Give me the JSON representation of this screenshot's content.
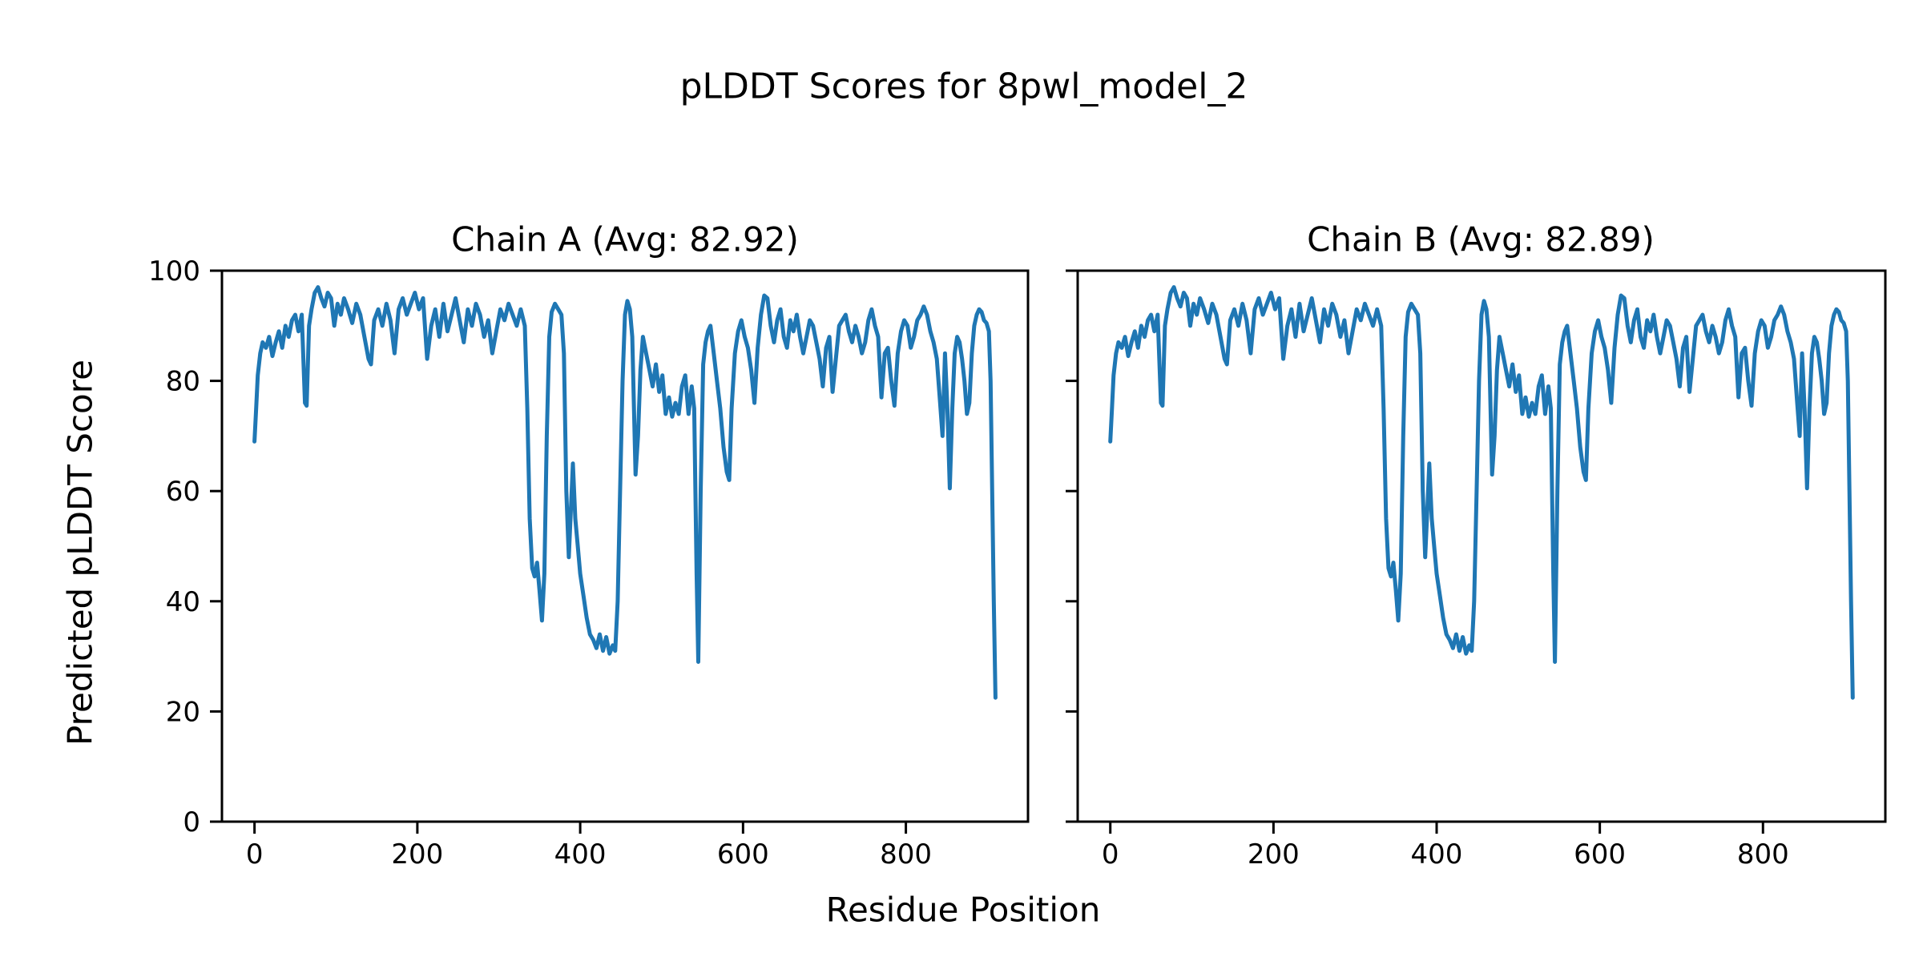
{
  "figure": {
    "title": "pLDDT Scores for 8pwl_model_2",
    "xlabel": "Residue Position",
    "ylabel": "Predicted pLDDT Score"
  },
  "colors": {
    "line": "#1f77b4",
    "axes": "#000000",
    "text": "#000000",
    "background": "#ffffff"
  },
  "chart_data": [
    {
      "type": "line",
      "title": "Chain A (Avg: 82.92)",
      "chain": "A",
      "avg": 82.92,
      "xlabel": "Residue Position",
      "ylabel": "Predicted pLDDT Score",
      "xlim": [
        -40,
        950
      ],
      "ylim": [
        0,
        100
      ],
      "xticks": [
        0,
        200,
        400,
        600,
        800
      ],
      "yticks": [
        0,
        20,
        40,
        60,
        80,
        100
      ],
      "ytick_labels_visible": true,
      "grid": false,
      "legend": null,
      "x": [
        0,
        2,
        4,
        7,
        10,
        14,
        18,
        22,
        26,
        30,
        34,
        38,
        42,
        46,
        50,
        54,
        58,
        62,
        64,
        67,
        70,
        74,
        78,
        82,
        86,
        90,
        94,
        98,
        102,
        106,
        110,
        115,
        120,
        125,
        130,
        135,
        140,
        143,
        147,
        152,
        157,
        162,
        167,
        172,
        177,
        182,
        187,
        192,
        197,
        202,
        207,
        212,
        217,
        222,
        227,
        232,
        237,
        242,
        247,
        252,
        257,
        262,
        267,
        272,
        277,
        282,
        287,
        292,
        297,
        302,
        307,
        312,
        317,
        322,
        327,
        332,
        335,
        338,
        341,
        344,
        347,
        350,
        353,
        356,
        359,
        362,
        365,
        369,
        373,
        377,
        380,
        383,
        386,
        389,
        391,
        394,
        397,
        400,
        404,
        408,
        412,
        416,
        420,
        424,
        428,
        432,
        436,
        440,
        443,
        446,
        449,
        452,
        455,
        458,
        461,
        464,
        468,
        471,
        474,
        477,
        481,
        485,
        489,
        493,
        497,
        501,
        505,
        509,
        513,
        517,
        521,
        525,
        529,
        533,
        537,
        540,
        543,
        545,
        548,
        551,
        554,
        557,
        560,
        564,
        568,
        572,
        576,
        580,
        583,
        586,
        590,
        594,
        598,
        602,
        606,
        610,
        614,
        618,
        622,
        626,
        630,
        634,
        638,
        642,
        646,
        650,
        654,
        658,
        662,
        666,
        670,
        674,
        678,
        682,
        686,
        690,
        694,
        698,
        702,
        706,
        710,
        714,
        718,
        722,
        726,
        730,
        734,
        738,
        742,
        746,
        750,
        754,
        758,
        762,
        766,
        770,
        774,
        778,
        782,
        786,
        790,
        794,
        798,
        802,
        806,
        810,
        814,
        818,
        822,
        826,
        830,
        834,
        838,
        842,
        845,
        848,
        851,
        854,
        857,
        860,
        863,
        866,
        869,
        872,
        875,
        878,
        881,
        884,
        887,
        890,
        893,
        896,
        899,
        902,
        904,
        906,
        908,
        910
      ],
      "values": [
        69,
        75,
        81,
        85,
        87,
        86,
        88,
        84.5,
        87,
        89,
        86,
        90,
        88,
        91,
        92,
        89,
        92,
        76,
        75.5,
        90,
        93,
        96,
        97,
        95,
        93.5,
        96,
        95,
        90,
        94,
        92,
        95,
        93,
        90.5,
        94,
        92,
        88,
        84,
        83,
        91,
        93,
        90,
        94,
        91,
        85,
        93,
        95,
        92,
        94,
        96,
        93,
        95,
        84,
        90,
        93,
        88,
        94,
        89,
        92,
        95,
        91,
        87,
        93,
        90,
        94,
        92,
        88,
        91,
        85,
        89,
        93,
        91,
        94,
        92,
        90,
        93,
        90,
        75,
        55,
        46,
        44.5,
        47,
        42,
        36.5,
        45,
        70,
        88,
        92.5,
        94,
        93,
        92,
        85,
        60,
        48,
        58,
        65,
        55,
        50,
        45,
        41,
        37,
        34,
        33,
        31.5,
        34,
        31,
        33.5,
        30.5,
        32,
        31,
        40,
        60,
        80,
        92,
        94.5,
        93,
        88,
        63,
        70,
        82,
        88,
        85,
        82,
        79,
        83,
        78,
        81,
        74,
        77,
        73.5,
        76,
        74,
        79,
        81,
        74,
        79,
        75,
        45,
        29,
        60,
        83,
        87,
        89,
        90,
        85,
        80,
        75,
        68,
        63.5,
        62,
        75,
        85,
        89,
        91,
        88,
        86,
        82,
        76,
        86,
        92,
        95.5,
        95,
        90,
        87,
        91,
        93,
        88,
        86,
        91,
        89,
        92,
        88,
        85,
        88,
        91,
        90,
        87,
        84,
        79,
        86,
        88,
        78,
        84,
        90,
        91,
        92,
        89,
        87,
        90,
        88,
        85,
        87,
        91,
        93,
        90,
        88,
        77,
        85,
        86,
        80,
        75.5,
        85,
        89,
        91,
        90,
        86,
        88,
        91,
        92,
        93.5,
        92,
        89,
        87,
        84,
        76,
        70,
        85,
        75,
        60.5,
        75,
        85,
        88,
        87,
        84,
        80,
        74,
        76,
        85,
        90,
        92,
        93,
        92.5,
        91,
        90.5,
        89,
        80,
        60,
        40,
        22.5
      ]
    },
    {
      "type": "line",
      "title": "Chain B (Avg: 82.89)",
      "chain": "B",
      "avg": 82.89,
      "xlabel": "Residue Position",
      "ylabel": "Predicted pLDDT Score",
      "xlim": [
        -40,
        950
      ],
      "ylim": [
        0,
        100
      ],
      "xticks": [
        0,
        200,
        400,
        600,
        800
      ],
      "yticks": [
        0,
        20,
        40,
        60,
        80,
        100
      ],
      "ytick_labels_visible": false,
      "grid": false,
      "legend": null,
      "x": [
        0,
        2,
        4,
        7,
        10,
        14,
        18,
        22,
        26,
        30,
        34,
        38,
        42,
        46,
        50,
        54,
        58,
        62,
        64,
        67,
        70,
        74,
        78,
        82,
        86,
        90,
        94,
        98,
        102,
        106,
        110,
        115,
        120,
        125,
        130,
        135,
        140,
        143,
        147,
        152,
        157,
        162,
        167,
        172,
        177,
        182,
        187,
        192,
        197,
        202,
        207,
        212,
        217,
        222,
        227,
        232,
        237,
        242,
        247,
        252,
        257,
        262,
        267,
        272,
        277,
        282,
        287,
        292,
        297,
        302,
        307,
        312,
        317,
        322,
        327,
        332,
        335,
        338,
        341,
        344,
        347,
        350,
        353,
        356,
        359,
        362,
        365,
        369,
        373,
        377,
        380,
        383,
        386,
        389,
        391,
        394,
        397,
        400,
        404,
        408,
        412,
        416,
        420,
        424,
        428,
        432,
        436,
        440,
        443,
        446,
        449,
        452,
        455,
        458,
        461,
        464,
        468,
        471,
        474,
        477,
        481,
        485,
        489,
        493,
        497,
        501,
        505,
        509,
        513,
        517,
        521,
        525,
        529,
        533,
        537,
        540,
        543,
        545,
        548,
        551,
        554,
        557,
        560,
        564,
        568,
        572,
        576,
        580,
        583,
        586,
        590,
        594,
        598,
        602,
        606,
        610,
        614,
        618,
        622,
        626,
        630,
        634,
        638,
        642,
        646,
        650,
        654,
        658,
        662,
        666,
        670,
        674,
        678,
        682,
        686,
        690,
        694,
        698,
        702,
        706,
        710,
        714,
        718,
        722,
        726,
        730,
        734,
        738,
        742,
        746,
        750,
        754,
        758,
        762,
        766,
        770,
        774,
        778,
        782,
        786,
        790,
        794,
        798,
        802,
        806,
        810,
        814,
        818,
        822,
        826,
        830,
        834,
        838,
        842,
        845,
        848,
        851,
        854,
        857,
        860,
        863,
        866,
        869,
        872,
        875,
        878,
        881,
        884,
        887,
        890,
        893,
        896,
        899,
        902,
        904,
        906,
        908,
        910
      ],
      "values": [
        69,
        75,
        81,
        85,
        87,
        86,
        88,
        84.5,
        87,
        89,
        86,
        90,
        88,
        91,
        92,
        89,
        92,
        76,
        75.5,
        90,
        93,
        96,
        97,
        95,
        93.5,
        96,
        95,
        90,
        94,
        92,
        95,
        93,
        90.5,
        94,
        92,
        88,
        84,
        83,
        91,
        93,
        90,
        94,
        91,
        85,
        93,
        95,
        92,
        94,
        96,
        93,
        95,
        84,
        90,
        93,
        88,
        94,
        89,
        92,
        95,
        91,
        87,
        93,
        90,
        94,
        92,
        88,
        91,
        85,
        89,
        93,
        91,
        94,
        92,
        90,
        93,
        90,
        75,
        55,
        46,
        44.5,
        47,
        42,
        36.5,
        45,
        70,
        88,
        92.5,
        94,
        93,
        92,
        85,
        60,
        48,
        58,
        65,
        55,
        50,
        45,
        41,
        37,
        34,
        33,
        31.5,
        34,
        31,
        33.5,
        30.5,
        32,
        31,
        40,
        60,
        80,
        92,
        94.5,
        93,
        88,
        63,
        70,
        82,
        88,
        85,
        82,
        79,
        83,
        78,
        81,
        74,
        77,
        73.5,
        76,
        74,
        79,
        81,
        74,
        79,
        75,
        45,
        29,
        60,
        83,
        87,
        89,
        90,
        85,
        80,
        75,
        68,
        63.5,
        62,
        75,
        85,
        89,
        91,
        88,
        86,
        82,
        76,
        86,
        92,
        95.5,
        95,
        90,
        87,
        91,
        93,
        88,
        86,
        91,
        89,
        92,
        88,
        85,
        88,
        91,
        90,
        87,
        84,
        79,
        86,
        88,
        78,
        84,
        90,
        91,
        92,
        89,
        87,
        90,
        88,
        85,
        87,
        91,
        93,
        90,
        88,
        77,
        85,
        86,
        80,
        75.5,
        85,
        89,
        91,
        90,
        86,
        88,
        91,
        92,
        93.5,
        92,
        89,
        87,
        84,
        76,
        70,
        85,
        75,
        60.5,
        75,
        85,
        88,
        87,
        84,
        80,
        74,
        76,
        85,
        90,
        92,
        93,
        92.5,
        91,
        90.5,
        89,
        80,
        60,
        40,
        22.5
      ]
    }
  ]
}
